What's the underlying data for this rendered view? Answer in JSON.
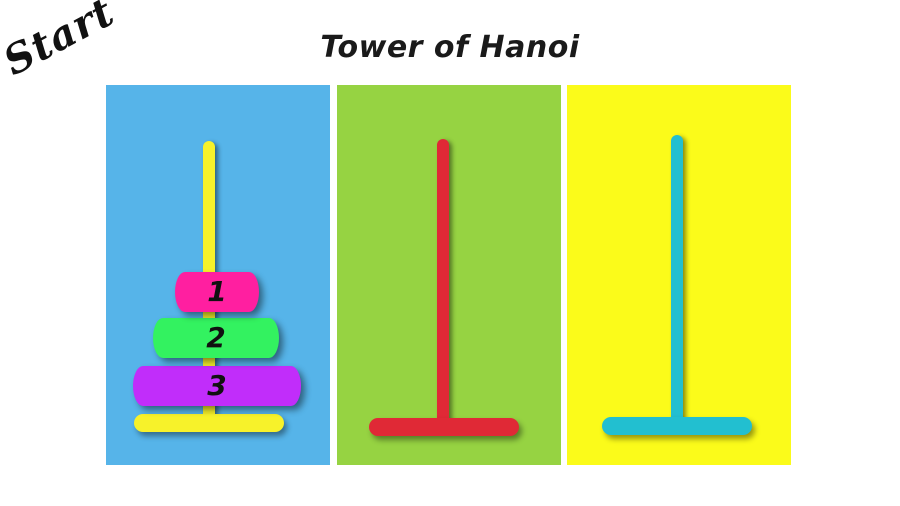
{
  "start_label": "Start",
  "title": "Tower of Hanoi",
  "colors": {
    "background": "#ffffff",
    "text": "#111111"
  },
  "towers": [
    {
      "panel_color": "#56b4e9",
      "rod_color": "#f7f22a",
      "base_color": "#f7f22a",
      "disks": [
        {
          "label": "1",
          "color": "#ff1fa0"
        },
        {
          "label": "2",
          "color": "#33f260"
        },
        {
          "label": "3",
          "color": "#c12dfa"
        }
      ]
    },
    {
      "panel_color": "#96d342",
      "rod_color": "#e02936",
      "base_color": "#e02936",
      "disks": []
    },
    {
      "panel_color": "#fbfb1a",
      "rod_color": "#22bfd0",
      "base_color": "#22bfd0",
      "disks": []
    }
  ]
}
